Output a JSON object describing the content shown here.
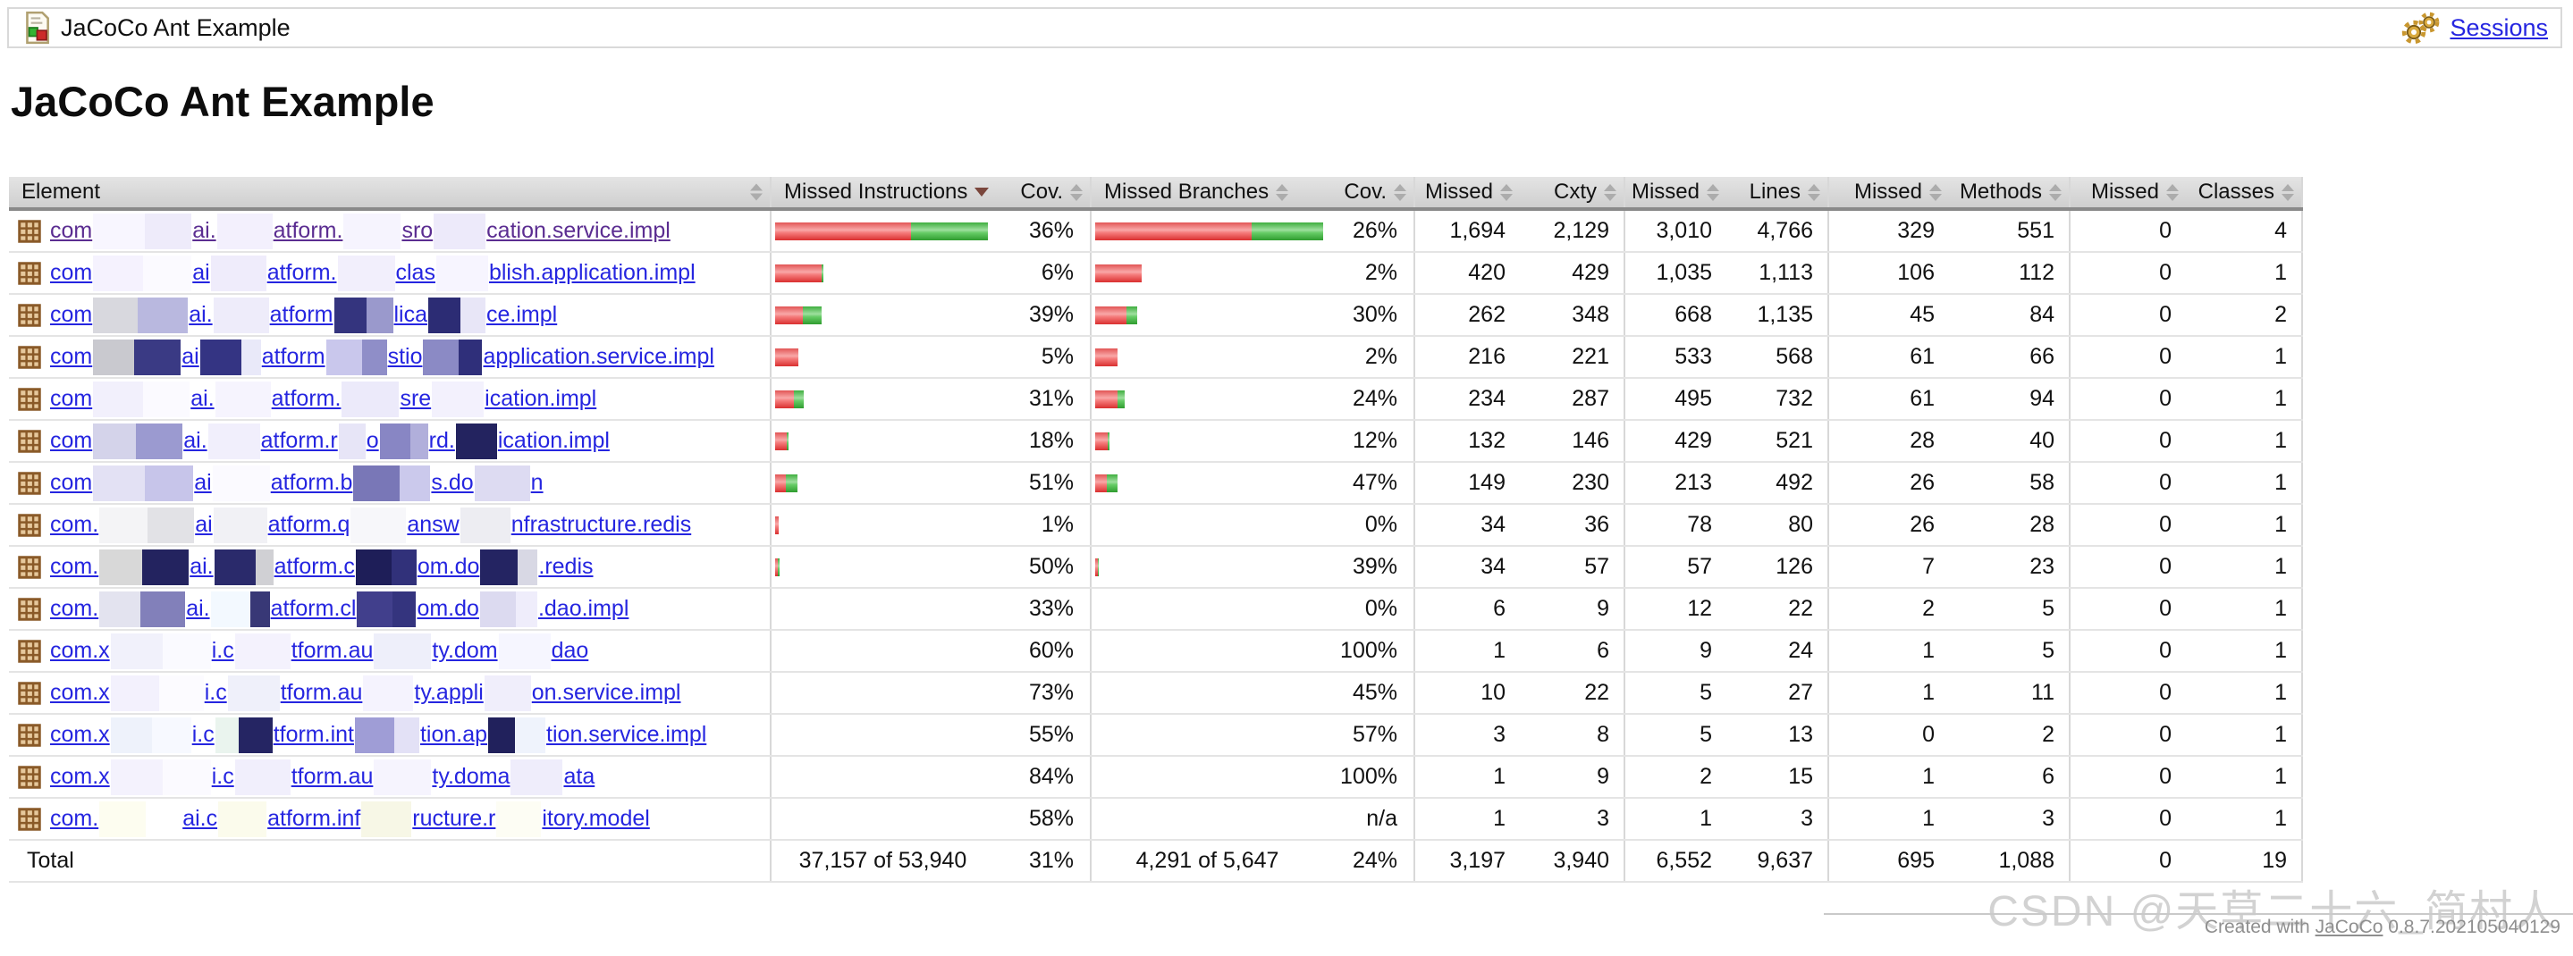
{
  "topbar": {
    "title": "JaCoCo Ant Example",
    "sessions_label": "Sessions"
  },
  "heading": "JaCoCo Ant Example",
  "colors": {
    "link": "#2525e0",
    "link_visited": "#5b2d91",
    "bar_red": "#e25555",
    "bar_green": "#3fae3f",
    "sort_active_arrow": "#7a463c"
  },
  "table": {
    "headers": [
      {
        "label": "Element",
        "align": "left",
        "sort": "both"
      },
      {
        "label": "Missed Instructions",
        "align": "left",
        "sort": "desc"
      },
      {
        "label": "Cov.",
        "align": "right",
        "sort": "both"
      },
      {
        "label": "Missed Branches",
        "align": "left",
        "sort": "both"
      },
      {
        "label": "Cov.",
        "align": "right",
        "sort": "both"
      },
      {
        "label": "Missed",
        "align": "right",
        "sort": "both"
      },
      {
        "label": "Cxty",
        "align": "right",
        "sort": "both"
      },
      {
        "label": "Missed",
        "align": "right",
        "sort": "both"
      },
      {
        "label": "Lines",
        "align": "right",
        "sort": "both"
      },
      {
        "label": "Missed",
        "align": "right",
        "sort": "both"
      },
      {
        "label": "Methods",
        "align": "right",
        "sort": "both"
      },
      {
        "label": "Missed",
        "align": "right",
        "sort": "both"
      },
      {
        "label": "Classes",
        "align": "right",
        "sort": "both"
      }
    ],
    "rows": [
      {
        "segments": [
          "com",
          "ai.",
          "atform.",
          "sro",
          "cation.service.impl"
        ],
        "visited": true,
        "gaps": [
          [
            [
              58,
              "#f8f6ff"
            ],
            [
              52,
              "#eeebfa"
            ]
          ],
          [
            [
              62,
              "#f3f0fd"
            ]
          ],
          [
            [
              64,
              "#f6f4fe"
            ]
          ],
          [
            [
              58,
              "#edeafa"
            ]
          ]
        ],
        "instr_pct": "36%",
        "instr_bar": [
          152,
          86
        ],
        "branch_pct": "26%",
        "branch_bar": [
          175,
          80
        ],
        "nums": [
          "1,694",
          "2,129",
          "3,010",
          "4,766",
          "329",
          "551",
          "0",
          "4"
        ]
      },
      {
        "segments": [
          "com",
          "ai",
          "atform.",
          "clas",
          "blish.application.impl"
        ],
        "visited": false,
        "gaps": [
          [
            [
              56,
              "#f5f2fe"
            ],
            [
              54,
              "#fbfaff"
            ]
          ],
          [
            [
              62,
              "#efecfb"
            ]
          ],
          [
            [
              64,
              "#f2effc"
            ]
          ],
          [
            [
              58,
              "#f7f5ff"
            ]
          ]
        ],
        "instr_pct": "6%",
        "instr_bar": [
          52,
          2
        ],
        "branch_pct": "2%",
        "branch_bar": [
          52,
          0
        ],
        "nums": [
          "420",
          "429",
          "1,035",
          "1,113",
          "106",
          "112",
          "0",
          "1"
        ]
      },
      {
        "segments": [
          "com",
          "ai.",
          "atform",
          "lica",
          "ce.impl"
        ],
        "visited": false,
        "gaps": [
          [
            [
              50,
              "#d8d8de"
            ],
            [
              56,
              "#b9b8df"
            ]
          ],
          [
            [
              62,
              "#eeecfa"
            ]
          ],
          [
            [
              36,
              "#34347e"
            ],
            [
              30,
              "#9a99cc"
            ]
          ],
          [
            [
              36,
              "#2c2c74"
            ],
            [
              28,
              "#e8e6f7"
            ]
          ]
        ],
        "instr_pct": "39%",
        "instr_bar": [
          31,
          21
        ],
        "branch_pct": "30%",
        "branch_bar": [
          35,
          12
        ],
        "nums": [
          "262",
          "348",
          "668",
          "1,135",
          "45",
          "84",
          "0",
          "2"
        ]
      },
      {
        "segments": [
          "com",
          "ai",
          "atform",
          "stio",
          "application.service.impl"
        ],
        "visited": false,
        "gaps": [
          [
            [
              46,
              "#c9c9cf"
            ],
            [
              52,
              "#3a3a84"
            ]
          ],
          [
            [
              46,
              "#343483"
            ],
            [
              22,
              "#e9e9f9"
            ]
          ],
          [
            [
              40,
              "#c9c7ec"
            ],
            [
              28,
              "#8f8ec8"
            ]
          ],
          [
            [
              40,
              "#8b8ac5"
            ],
            [
              26,
              "#2f2f7a"
            ]
          ]
        ],
        "instr_pct": "5%",
        "instr_bar": [
          26,
          0
        ],
        "branch_pct": "2%",
        "branch_bar": [
          25,
          0
        ],
        "nums": [
          "216",
          "221",
          "533",
          "568",
          "61",
          "66",
          "0",
          "1"
        ]
      },
      {
        "segments": [
          "com",
          "ai.",
          "atform.",
          "sre",
          "ication.impl"
        ],
        "visited": false,
        "gaps": [
          [
            [
              56,
              "#f2f0fc"
            ],
            [
              52,
              "#fbfaff"
            ]
          ],
          [
            [
              62,
              "#f6f4fe"
            ]
          ],
          [
            [
              64,
              "#eceafa"
            ]
          ],
          [
            [
              58,
              "#f3f1fd"
            ]
          ]
        ],
        "instr_pct": "31%",
        "instr_bar": [
          21,
          11
        ],
        "branch_pct": "24%",
        "branch_bar": [
          25,
          8
        ],
        "nums": [
          "234",
          "287",
          "495",
          "732",
          "61",
          "94",
          "0",
          "1"
        ]
      },
      {
        "segments": [
          "com",
          "ai.",
          "atform.r",
          "o",
          "rd.",
          "ication.impl"
        ],
        "visited": false,
        "gaps": [
          [
            [
              48,
              "#d4d3ea"
            ],
            [
              52,
              "#9b9ad0"
            ]
          ],
          [
            [
              58,
              "#f1effc"
            ]
          ],
          [
            [
              30,
              "#e7e5f7"
            ]
          ],
          [
            [
              34,
              "#8886c4"
            ],
            [
              20,
              "#b1afdb"
            ]
          ],
          [
            [
              46,
              "#23235f"
            ]
          ]
        ],
        "instr_pct": "18%",
        "instr_bar": [
          13,
          2
        ],
        "branch_pct": "12%",
        "branch_bar": [
          14,
          2
        ],
        "nums": [
          "132",
          "146",
          "429",
          "521",
          "28",
          "40",
          "0",
          "1"
        ]
      },
      {
        "segments": [
          "com",
          "ai",
          "atform.b",
          "s.do",
          "n"
        ],
        "visited": false,
        "gaps": [
          [
            [
              58,
              "#e3e1f4"
            ],
            [
              54,
              "#c7c5ea"
            ]
          ],
          [
            [
              64,
              "#fbfaff"
            ]
          ],
          [
            [
              52,
              "#7977b7"
            ],
            [
              34,
              "#cbc9ec"
            ]
          ],
          [
            [
              62,
              "#dddbf2"
            ]
          ]
        ],
        "instr_pct": "51%",
        "instr_bar": [
          12,
          13
        ],
        "branch_pct": "47%",
        "branch_bar": [
          13,
          12
        ],
        "nums": [
          "149",
          "230",
          "213",
          "492",
          "26",
          "58",
          "0",
          "1"
        ]
      },
      {
        "segments": [
          "com.",
          "ai",
          "atform.q",
          "answ",
          "nfrastructure.redis"
        ],
        "visited": false,
        "gaps": [
          [
            [
              54,
              "#f4f4f6"
            ],
            [
              52,
              "#e2e2e6"
            ]
          ],
          [
            [
              60,
              "#f1f1f5"
            ]
          ],
          [
            [
              62,
              "#f7f7fa"
            ]
          ],
          [
            [
              56,
              "#ededf2"
            ]
          ]
        ],
        "instr_pct": "1%",
        "instr_bar": [
          4,
          0
        ],
        "branch_pct": "0%",
        "branch_bar": [
          0,
          0
        ],
        "nums": [
          "34",
          "36",
          "78",
          "80",
          "26",
          "28",
          "0",
          "1"
        ]
      },
      {
        "segments": [
          "com.",
          "ai.",
          "atform.c",
          "om.do",
          ".redis"
        ],
        "visited": false,
        "gaps": [
          [
            [
              48,
              "#d8d8d8"
            ],
            [
              52,
              "#23235f"
            ]
          ],
          [
            [
              46,
              "#2a2a6b"
            ],
            [
              20,
              "#d0d0d4"
            ]
          ],
          [
            [
              40,
              "#1e1e58"
            ],
            [
              28,
              "#31317a"
            ]
          ],
          [
            [
              42,
              "#242462"
            ],
            [
              22,
              "#d8d8e4"
            ]
          ]
        ],
        "instr_pct": "50%",
        "instr_bar": [
          3,
          2
        ],
        "branch_pct": "39%",
        "branch_bar": [
          3,
          1
        ],
        "nums": [
          "34",
          "57",
          "57",
          "126",
          "7",
          "23",
          "0",
          "1"
        ]
      },
      {
        "segments": [
          "com.",
          "ai.",
          "atform.cl",
          "om.do",
          ".dao.impl"
        ],
        "visited": false,
        "gaps": [
          [
            [
              46,
              "#e3e3ef"
            ],
            [
              50,
              "#8280ba"
            ]
          ],
          [
            [
              44,
              "#f3f9ff"
            ],
            [
              22,
              "#383876"
            ]
          ],
          [
            [
              40,
              "#413f8c"
            ],
            [
              26,
              "#34347e"
            ]
          ],
          [
            [
              40,
              "#dcdaf0"
            ],
            [
              24,
              "#efedfb"
            ]
          ]
        ],
        "instr_pct": "33%",
        "instr_bar": [
          0,
          0
        ],
        "branch_pct": "0%",
        "branch_bar": [
          0,
          0
        ],
        "nums": [
          "6",
          "9",
          "12",
          "22",
          "2",
          "5",
          "0",
          "1"
        ]
      },
      {
        "segments": [
          "com.x",
          "i.c",
          "tform.au",
          "ty.dom",
          "dao"
        ],
        "visited": false,
        "gaps": [
          [
            [
              58,
              "#f1f1fb"
            ],
            [
              54,
              "#fafaff"
            ]
          ],
          [
            [
              62,
              "#f4f2fd"
            ]
          ],
          [
            [
              64,
              "#eeeffa"
            ]
          ],
          [
            [
              58,
              "#f6f6ff"
            ]
          ]
        ],
        "instr_pct": "60%",
        "instr_bar": [
          0,
          0
        ],
        "branch_pct": "100%",
        "branch_bar": [
          0,
          0
        ],
        "nums": [
          "1",
          "6",
          "9",
          "24",
          "1",
          "5",
          "0",
          "1"
        ]
      },
      {
        "segments": [
          "com.x",
          "i.c",
          "tform.au",
          "ty.appli",
          "on.service.impl"
        ],
        "visited": false,
        "gaps": [
          [
            [
              54,
              "#f3f1fd"
            ],
            [
              50,
              "#fcfbff"
            ]
          ],
          [
            [
              58,
              "#eff0fa"
            ]
          ],
          [
            [
              56,
              "#f5f3fe"
            ]
          ],
          [
            [
              52,
              "#f0eefb"
            ]
          ]
        ],
        "instr_pct": "73%",
        "instr_bar": [
          0,
          0
        ],
        "branch_pct": "45%",
        "branch_bar": [
          0,
          0
        ],
        "nums": [
          "10",
          "22",
          "5",
          "27",
          "1",
          "11",
          "0",
          "1"
        ]
      },
      {
        "segments": [
          "com.x",
          "i.c",
          "tform.int",
          "tion.ap",
          "tion.service.impl"
        ],
        "visited": false,
        "gaps": [
          [
            [
              46,
              "#eef2fb"
            ],
            [
              44,
              "#f7f9ff"
            ]
          ],
          [
            [
              26,
              "#eaf4ee"
            ],
            [
              38,
              "#252563"
            ]
          ],
          [
            [
              44,
              "#9f9dd6"
            ],
            [
              28,
              "#e3e1f6"
            ]
          ],
          [
            [
              30,
              "#21215c"
            ],
            [
              34,
              "#eff3fc"
            ]
          ]
        ],
        "instr_pct": "55%",
        "instr_bar": [
          0,
          0
        ],
        "branch_pct": "57%",
        "branch_bar": [
          0,
          0
        ],
        "nums": [
          "3",
          "8",
          "5",
          "13",
          "0",
          "2",
          "0",
          "1"
        ]
      },
      {
        "segments": [
          "com.x",
          "i.c",
          "tform.au",
          "ty.doma",
          "ata"
        ],
        "visited": false,
        "gaps": [
          [
            [
              58,
              "#f4f2fd"
            ],
            [
              54,
              "#fbfaff"
            ]
          ],
          [
            [
              62,
              "#f1effc"
            ]
          ],
          [
            [
              64,
              "#f6f4fe"
            ]
          ],
          [
            [
              58,
              "#efedfb"
            ]
          ]
        ],
        "instr_pct": "84%",
        "instr_bar": [
          0,
          0
        ],
        "branch_pct": "100%",
        "branch_bar": [
          0,
          0
        ],
        "nums": [
          "1",
          "9",
          "2",
          "15",
          "1",
          "6",
          "0",
          "1"
        ]
      },
      {
        "segments": [
          "com.",
          "ai.c",
          "atform.inf",
          "ructure.r",
          "itory.model"
        ],
        "visited": false,
        "gaps": [
          [
            [
              52,
              "#fdfdf0"
            ],
            [
              40,
              "#ffffff"
            ]
          ],
          [
            [
              54,
              "#fbfbec"
            ]
          ],
          [
            [
              56,
              "#f7f7e6"
            ]
          ],
          [
            [
              50,
              "#fdfdf4"
            ]
          ]
        ],
        "instr_pct": "58%",
        "instr_bar": [
          0,
          0
        ],
        "branch_pct": "n/a",
        "branch_bar": [
          0,
          0
        ],
        "nums": [
          "1",
          "3",
          "1",
          "3",
          "1",
          "3",
          "0",
          "1"
        ]
      }
    ],
    "total": {
      "label": "Total",
      "instr_total": "37,157 of 53,940",
      "instr_pct": "31%",
      "branch_total": "4,291 of 5,647",
      "branch_pct": "24%",
      "nums": [
        "3,197",
        "3,940",
        "6,552",
        "9,637",
        "695",
        "1,088",
        "0",
        "19"
      ]
    }
  },
  "footer": {
    "created_prefix": "Created with",
    "jacoco_link": "JaCoCo",
    "version": "0.8.7.202105040129"
  },
  "watermark": "CSDN @天草二十六_简村人"
}
